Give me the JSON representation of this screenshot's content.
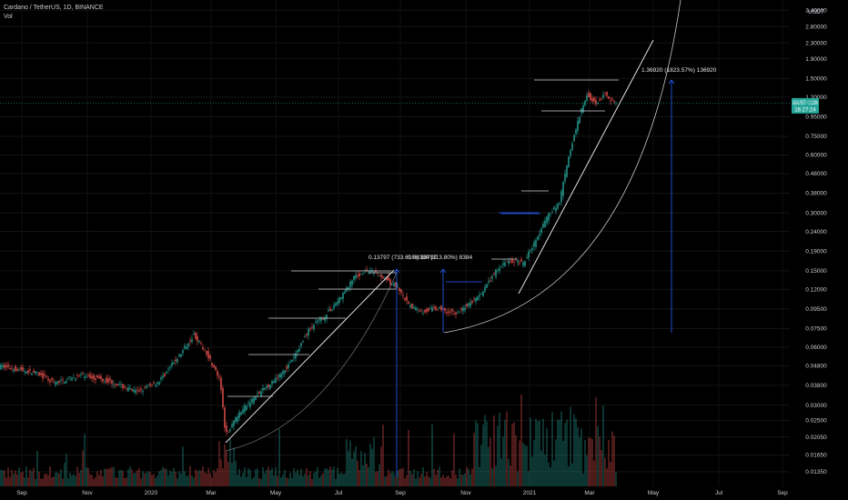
{
  "legend": {
    "symbol": "Cardano / TetherUS, 1D, BINANCE",
    "volume": "Vol"
  },
  "price_axis": {
    "unit": "USDT",
    "labels": [
      {
        "text": "3.40000",
        "value": 3.4
      },
      {
        "text": "2.80000",
        "value": 2.8
      },
      {
        "text": "2.30000",
        "value": 2.3
      },
      {
        "text": "1.90000",
        "value": 1.9
      },
      {
        "text": "1.50000",
        "value": 1.5
      },
      {
        "text": "1.20000",
        "value": 1.2
      },
      {
        "text": "0.95000",
        "value": 0.95
      },
      {
        "text": "0.75000",
        "value": 0.75
      },
      {
        "text": "0.60000",
        "value": 0.6
      },
      {
        "text": "0.48000",
        "value": 0.48
      },
      {
        "text": "0.38000",
        "value": 0.38
      },
      {
        "text": "0.30000",
        "value": 0.3
      },
      {
        "text": "0.24000",
        "value": 0.24
      },
      {
        "text": "0.19000",
        "value": 0.19
      },
      {
        "text": "0.15000",
        "value": 0.15
      },
      {
        "text": "0.12000",
        "value": 0.12
      },
      {
        "text": "0.09500",
        "value": 0.095
      },
      {
        "text": "0.07500",
        "value": 0.075
      },
      {
        "text": "0.06000",
        "value": 0.06
      },
      {
        "text": "0.04800",
        "value": 0.048
      },
      {
        "text": "0.03800",
        "value": 0.038
      },
      {
        "text": "0.03000",
        "value": 0.03
      },
      {
        "text": "0.02500",
        "value": 0.025
      },
      {
        "text": "0.02050",
        "value": 0.0205
      },
      {
        "text": "0.01650",
        "value": 0.0165
      },
      {
        "text": "0.01350",
        "value": 0.0135
      }
    ],
    "current_symbol": "ADAUSDT",
    "current_price": "1.11266",
    "countdown": "16:27:24",
    "current_value": 1.11266
  },
  "time_axis": {
    "labels": [
      "Sep",
      "Nov",
      "2020",
      "Mar",
      "May",
      "Jul",
      "Sep",
      "Nov",
      "2021",
      "Mar",
      "May",
      "Jul",
      "Sep"
    ]
  },
  "annotations": {
    "first_measure": "0.13797 (733.61%) 13797",
    "second_measure": "0.08384 (113.80%) 8384",
    "third_measure": "1.36920 (1823.57%) 136920"
  },
  "colors": {
    "background": "#000000",
    "up": "#26a69a",
    "down": "#ef5350",
    "trendline": "#e0e0e0",
    "measure": "#2962ff",
    "price_tag": "#26a69a"
  },
  "chart_data": {
    "type": "candlestick",
    "title": "Cardano / TetherUS, 1D, BINANCE",
    "price_scale": "log",
    "ylim": [
      0.0125,
      3.6
    ],
    "series": [
      {
        "name": "ADAUSDT",
        "type": "candlestick",
        "points": [
          [
            "Sep 2019",
            0.047
          ],
          [
            "Oct 2019",
            0.041
          ],
          [
            "Nov 2019",
            0.04
          ],
          [
            "Dec 2019",
            0.034
          ],
          [
            "Jan 2020",
            0.045
          ],
          [
            "Feb 2020",
            0.068
          ],
          [
            "Mar 2020",
            0.022
          ],
          [
            "Apr 2020",
            0.034
          ],
          [
            "May 2020",
            0.05
          ],
          [
            "Jun 2020",
            0.08
          ],
          [
            "Jul 2020",
            0.135
          ],
          [
            "Aug 2020",
            0.145
          ],
          [
            "Sep 2020",
            0.098
          ],
          [
            "Oct 2020",
            0.1
          ],
          [
            "Nov 2020",
            0.11
          ],
          [
            "Dec 2020",
            0.165
          ],
          [
            "Jan 2021",
            0.33
          ],
          [
            "Feb 2021",
            0.95
          ],
          [
            "Mar 2021",
            1.2
          ],
          [
            "Mar 2021 end",
            1.11
          ]
        ]
      }
    ],
    "volume": {
      "name": "Vol"
    }
  }
}
